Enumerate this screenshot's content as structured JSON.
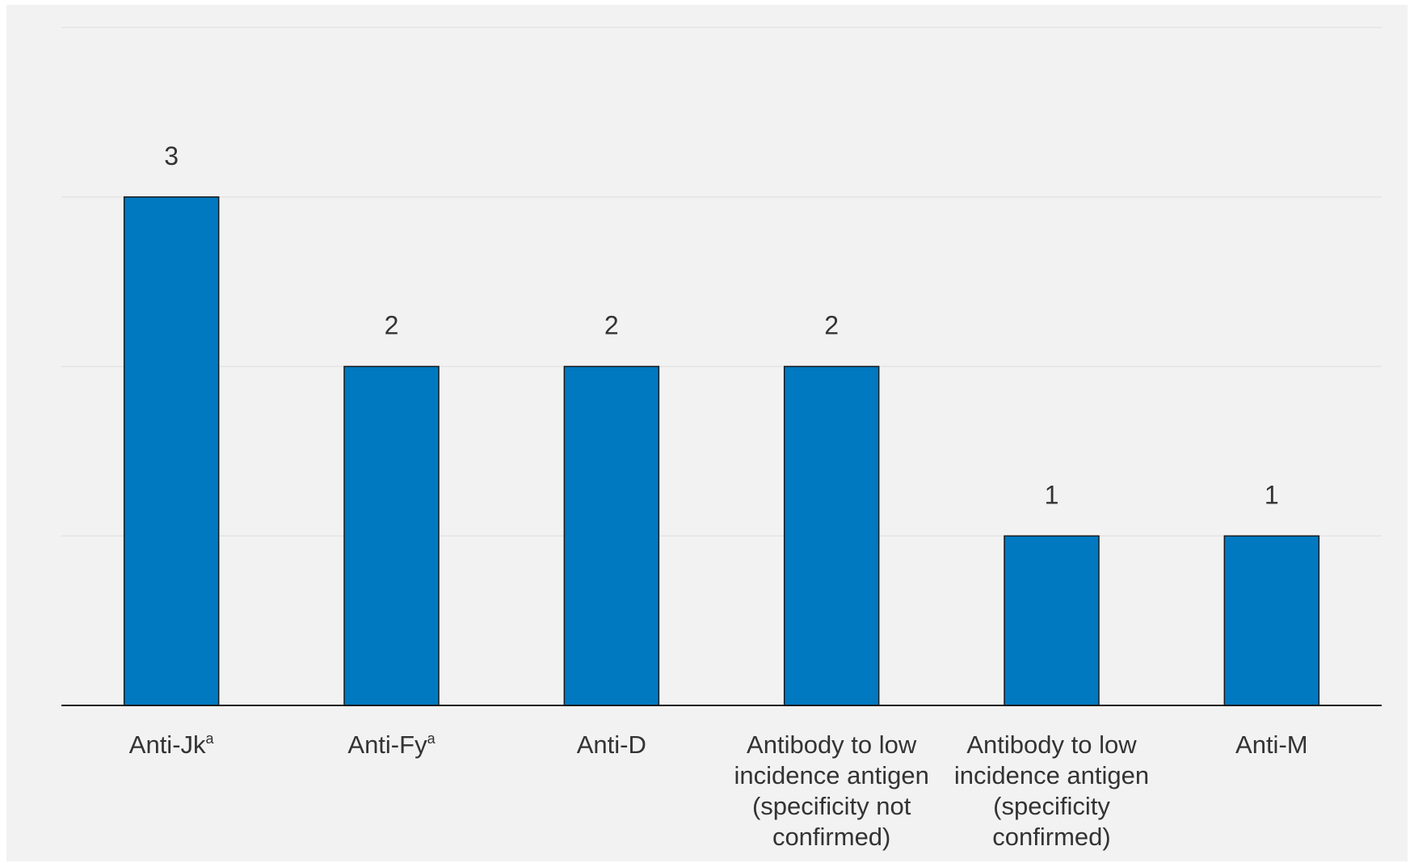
{
  "chart_data": {
    "type": "bar",
    "categories": [
      "Anti-Jkᵃ",
      "Anti-Fyᵃ",
      "Anti-D",
      "Antibody to low incidence antigen (specificity not confirmed)",
      "Antibody to low incidence antigen (specificity confirmed)",
      "Anti-M"
    ],
    "category_lines": [
      [
        {
          "text": "Anti-Jk",
          "sup": "a"
        }
      ],
      [
        {
          "text": "Anti-Fy",
          "sup": "a"
        }
      ],
      [
        {
          "text": "Anti-D"
        }
      ],
      [
        {
          "text": "Antibody to low"
        },
        {
          "text": "incidence antigen"
        },
        {
          "text": "(specificity not"
        },
        {
          "text": "confirmed)"
        }
      ],
      [
        {
          "text": "Antibody to low"
        },
        {
          "text": "incidence antigen"
        },
        {
          "text": "(specificity"
        },
        {
          "text": "confirmed)"
        }
      ],
      [
        {
          "text": "Anti-M"
        }
      ]
    ],
    "values": [
      3,
      2,
      2,
      2,
      1,
      1
    ],
    "data_labels": [
      "3",
      "2",
      "2",
      "2",
      "1",
      "1"
    ],
    "title": "",
    "xlabel": "",
    "ylabel": "",
    "ylim": [
      0,
      4
    ],
    "grid": true,
    "legend": "none",
    "bar_color": "#0079c1",
    "background_color": "#f2f2f2"
  }
}
